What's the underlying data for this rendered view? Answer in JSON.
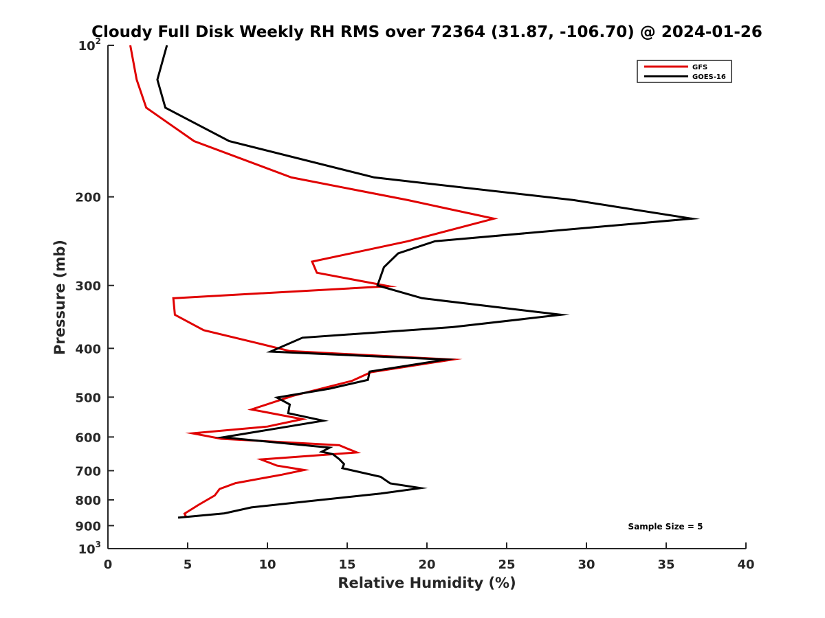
{
  "chart_data": {
    "type": "line",
    "title": "Cloudy Full Disk Weekly RH RMS over 72364 (31.87, -106.70) @ 2024-01-26",
    "xlabel": "Relative Humidity (%)",
    "ylabel": "Pressure (mb)",
    "xlim": [
      0,
      40
    ],
    "ylim": [
      100,
      1000
    ],
    "yscale": "log",
    "y_reversed": true,
    "grid": false,
    "legend_position": "top-right",
    "x_ticks": [
      "0",
      "5",
      "10",
      "15",
      "20",
      "25",
      "30",
      "35",
      "40"
    ],
    "x_tick_values": [
      0,
      5,
      10,
      15,
      20,
      25,
      30,
      35,
      40
    ],
    "y_ticks": [
      {
        "value": 100,
        "base": "10",
        "exp": "2"
      },
      {
        "value": 200,
        "label": "200"
      },
      {
        "value": 300,
        "label": "300"
      },
      {
        "value": 400,
        "label": "400"
      },
      {
        "value": 500,
        "label": "500"
      },
      {
        "value": 600,
        "label": "600"
      },
      {
        "value": 700,
        "label": "700"
      },
      {
        "value": 800,
        "label": "800"
      },
      {
        "value": 900,
        "label": "900"
      },
      {
        "value": 1000,
        "base": "10",
        "exp": "3"
      }
    ],
    "annotation": "Sample Size = 5",
    "series": [
      {
        "name": "GFS",
        "color": "#e00000",
        "points": [
          [
            1.4,
            100
          ],
          [
            1.8,
            117
          ],
          [
            2.4,
            133
          ],
          [
            5.4,
            155
          ],
          [
            11.5,
            183
          ],
          [
            18.8,
            203
          ],
          [
            24.2,
            221
          ],
          [
            18.8,
            245
          ],
          [
            12.8,
            269
          ],
          [
            13.1,
            283
          ],
          [
            17.6,
            301
          ],
          [
            4.1,
            318
          ],
          [
            4.2,
            343
          ],
          [
            6.0,
            368
          ],
          [
            9.3,
            390
          ],
          [
            11.4,
            405
          ],
          [
            21.6,
            421
          ],
          [
            16.5,
            446
          ],
          [
            15.3,
            464
          ],
          [
            11.6,
            497
          ],
          [
            9.0,
            529
          ],
          [
            12.2,
            553
          ],
          [
            10.0,
            572
          ],
          [
            5.3,
            590
          ],
          [
            7.1,
            605
          ],
          [
            14.5,
            623
          ],
          [
            15.6,
            644
          ],
          [
            9.6,
            665
          ],
          [
            10.6,
            684
          ],
          [
            12.3,
            698
          ],
          [
            10.9,
            713
          ],
          [
            8.0,
            741
          ],
          [
            7.0,
            761
          ],
          [
            6.7,
            784
          ],
          [
            5.7,
            818
          ],
          [
            4.8,
            852
          ],
          [
            4.9,
            865
          ]
        ]
      },
      {
        "name": "GOES-16",
        "color": "#000000",
        "points": [
          [
            3.7,
            100
          ],
          [
            3.1,
            117
          ],
          [
            3.6,
            133
          ],
          [
            7.6,
            155
          ],
          [
            16.7,
            183
          ],
          [
            29.2,
            203
          ],
          [
            36.6,
            221
          ],
          [
            20.5,
            245
          ],
          [
            18.2,
            259
          ],
          [
            17.3,
            276
          ],
          [
            16.9,
            300
          ],
          [
            19.7,
            318
          ],
          [
            28.4,
            343
          ],
          [
            21.6,
            363
          ],
          [
            12.2,
            381
          ],
          [
            10.2,
            406
          ],
          [
            21.2,
            421
          ],
          [
            16.4,
            445
          ],
          [
            16.3,
            462
          ],
          [
            13.9,
            481
          ],
          [
            10.6,
            501
          ],
          [
            11.4,
            517
          ],
          [
            11.3,
            538
          ],
          [
            13.5,
            557
          ],
          [
            7.2,
            601
          ],
          [
            13.9,
            630
          ],
          [
            13.4,
            642
          ],
          [
            14.1,
            649
          ],
          [
            14.5,
            664
          ],
          [
            14.8,
            679
          ],
          [
            14.7,
            692
          ],
          [
            17.1,
            720
          ],
          [
            17.7,
            742
          ],
          [
            19.6,
            758
          ],
          [
            17.1,
            777
          ],
          [
            12.1,
            808
          ],
          [
            9.0,
            828
          ],
          [
            7.3,
            851
          ],
          [
            4.4,
            868
          ]
        ]
      }
    ]
  }
}
